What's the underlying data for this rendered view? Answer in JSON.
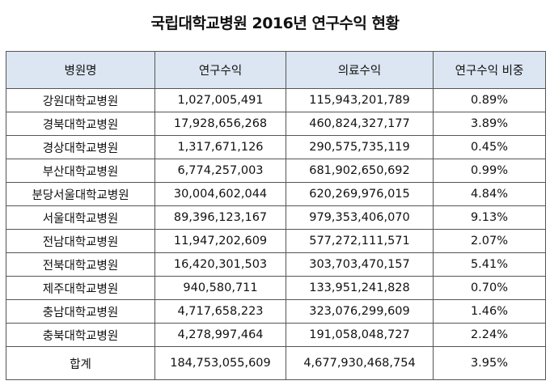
{
  "title": "국립대학교병원 2016년 연구수익 현황",
  "table": {
    "headers": [
      "병원명",
      "연구수익",
      "의료수익",
      "연구수익 비중"
    ],
    "rows": [
      [
        "강원대학교병원",
        "1,027,005,491",
        "115,943,201,789",
        "0.89%"
      ],
      [
        "경북대학교병원",
        "17,928,656,268",
        "460,824,327,177",
        "3.89%"
      ],
      [
        "경상대학교병원",
        "1,317,671,126",
        "290,575,735,119",
        "0.45%"
      ],
      [
        "부산대학교병원",
        "6,774,257,003",
        "681,902,650,692",
        "0.99%"
      ],
      [
        "분당서울대학교병원",
        "30,004,602,044",
        "620,269,976,015",
        "4.84%"
      ],
      [
        "서울대학교병원",
        "89,396,123,167",
        "979,353,406,070",
        "9.13%"
      ],
      [
        "전남대학교병원",
        "11,947,202,609",
        "577,272,111,571",
        "2.07%"
      ],
      [
        "전북대학교병원",
        "16,420,301,503",
        "303,703,470,157",
        "5.41%"
      ],
      [
        "제주대학교병원",
        "940,580,711",
        "133,951,241,828",
        "0.70%"
      ],
      [
        "충남대학교병원",
        "4,717,658,223",
        "323,076,299,609",
        "1.46%"
      ],
      [
        "충북대학교병원",
        "4,278,997,464",
        "191,058,048,727",
        "2.24%"
      ]
    ],
    "total": [
      "합계",
      "184,753,055,609",
      "4,677,930,468,754",
      "3.95%"
    ]
  },
  "colors": {
    "header_background": "#dce6f2",
    "border": "#555555"
  }
}
